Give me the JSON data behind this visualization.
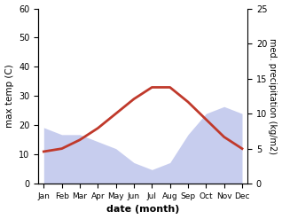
{
  "months": [
    "Jan",
    "Feb",
    "Mar",
    "Apr",
    "May",
    "Jun",
    "Jul",
    "Aug",
    "Sep",
    "Oct",
    "Nov",
    "Dec"
  ],
  "temp": [
    11,
    12,
    15,
    19,
    24,
    29,
    33,
    33,
    28,
    22,
    16,
    12
  ],
  "precip": [
    8,
    7,
    7,
    6,
    5,
    3,
    2,
    3,
    7,
    10,
    11,
    10
  ],
  "temp_color": "#c0392b",
  "precip_color_fill": "#b0b8e8",
  "xlabel": "date (month)",
  "ylabel_left": "max temp (C)",
  "ylabel_right": "med. precipitation (kg/m2)",
  "ylim_left": [
    0,
    60
  ],
  "ylim_right": [
    0,
    25
  ],
  "temp_lw": 2.0,
  "bg_color": "#ffffff"
}
